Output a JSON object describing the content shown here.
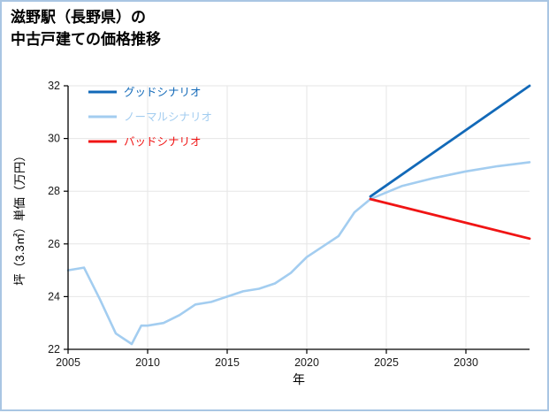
{
  "frame": {
    "border_color": "#a9c6e3"
  },
  "title": {
    "line1": "滋野駅（長野県）の",
    "line2": "中古戸建ての価格推移"
  },
  "chart_data": {
    "type": "line",
    "title": "滋野駅（長野県）の中古戸建ての価格推移",
    "xlabel": "年",
    "ylabel": "坪（3.3㎡）単価（万円）",
    "xlim": [
      2005,
      2034
    ],
    "ylim": [
      22,
      32
    ],
    "xticks": [
      2005,
      2010,
      2015,
      2020,
      2025,
      2030
    ],
    "yticks": [
      22,
      24,
      26,
      28,
      30,
      32
    ],
    "grid": true,
    "grid_color": "#e6e6e6",
    "axis_color": "#000000",
    "legend_position": "top-left",
    "legend": [
      {
        "label": "グッドシナリオ",
        "color": "#1269b8"
      },
      {
        "label": "ノーマルシナリオ",
        "color": "#a3cdf0"
      },
      {
        "label": "バッドシナリオ",
        "color": "#f01414"
      }
    ],
    "series": [
      {
        "name": "ノーマルシナリオ",
        "color": "#a3cdf0",
        "width": 2.6,
        "x": [
          2005,
          2006,
          2007,
          2008,
          2009,
          2009.6,
          2010,
          2011,
          2012,
          2013,
          2014,
          2015,
          2016,
          2017,
          2018,
          2019,
          2020,
          2021,
          2022,
          2023,
          2024,
          2026,
          2028,
          2030,
          2032,
          2034
        ],
        "values": [
          25.0,
          25.1,
          23.9,
          22.6,
          22.2,
          22.9,
          22.9,
          23.0,
          23.3,
          23.7,
          23.8,
          24.0,
          24.2,
          24.3,
          24.5,
          24.9,
          25.5,
          25.9,
          26.3,
          27.2,
          27.7,
          28.2,
          28.5,
          28.75,
          28.95,
          29.1
        ]
      },
      {
        "name": "グッドシナリオ",
        "color": "#1269b8",
        "width": 2.8,
        "x": [
          2024,
          2034
        ],
        "values": [
          27.8,
          32.0
        ]
      },
      {
        "name": "バッドシナリオ",
        "color": "#f01414",
        "width": 2.8,
        "x": [
          2024,
          2034
        ],
        "values": [
          27.7,
          26.2
        ]
      }
    ]
  }
}
